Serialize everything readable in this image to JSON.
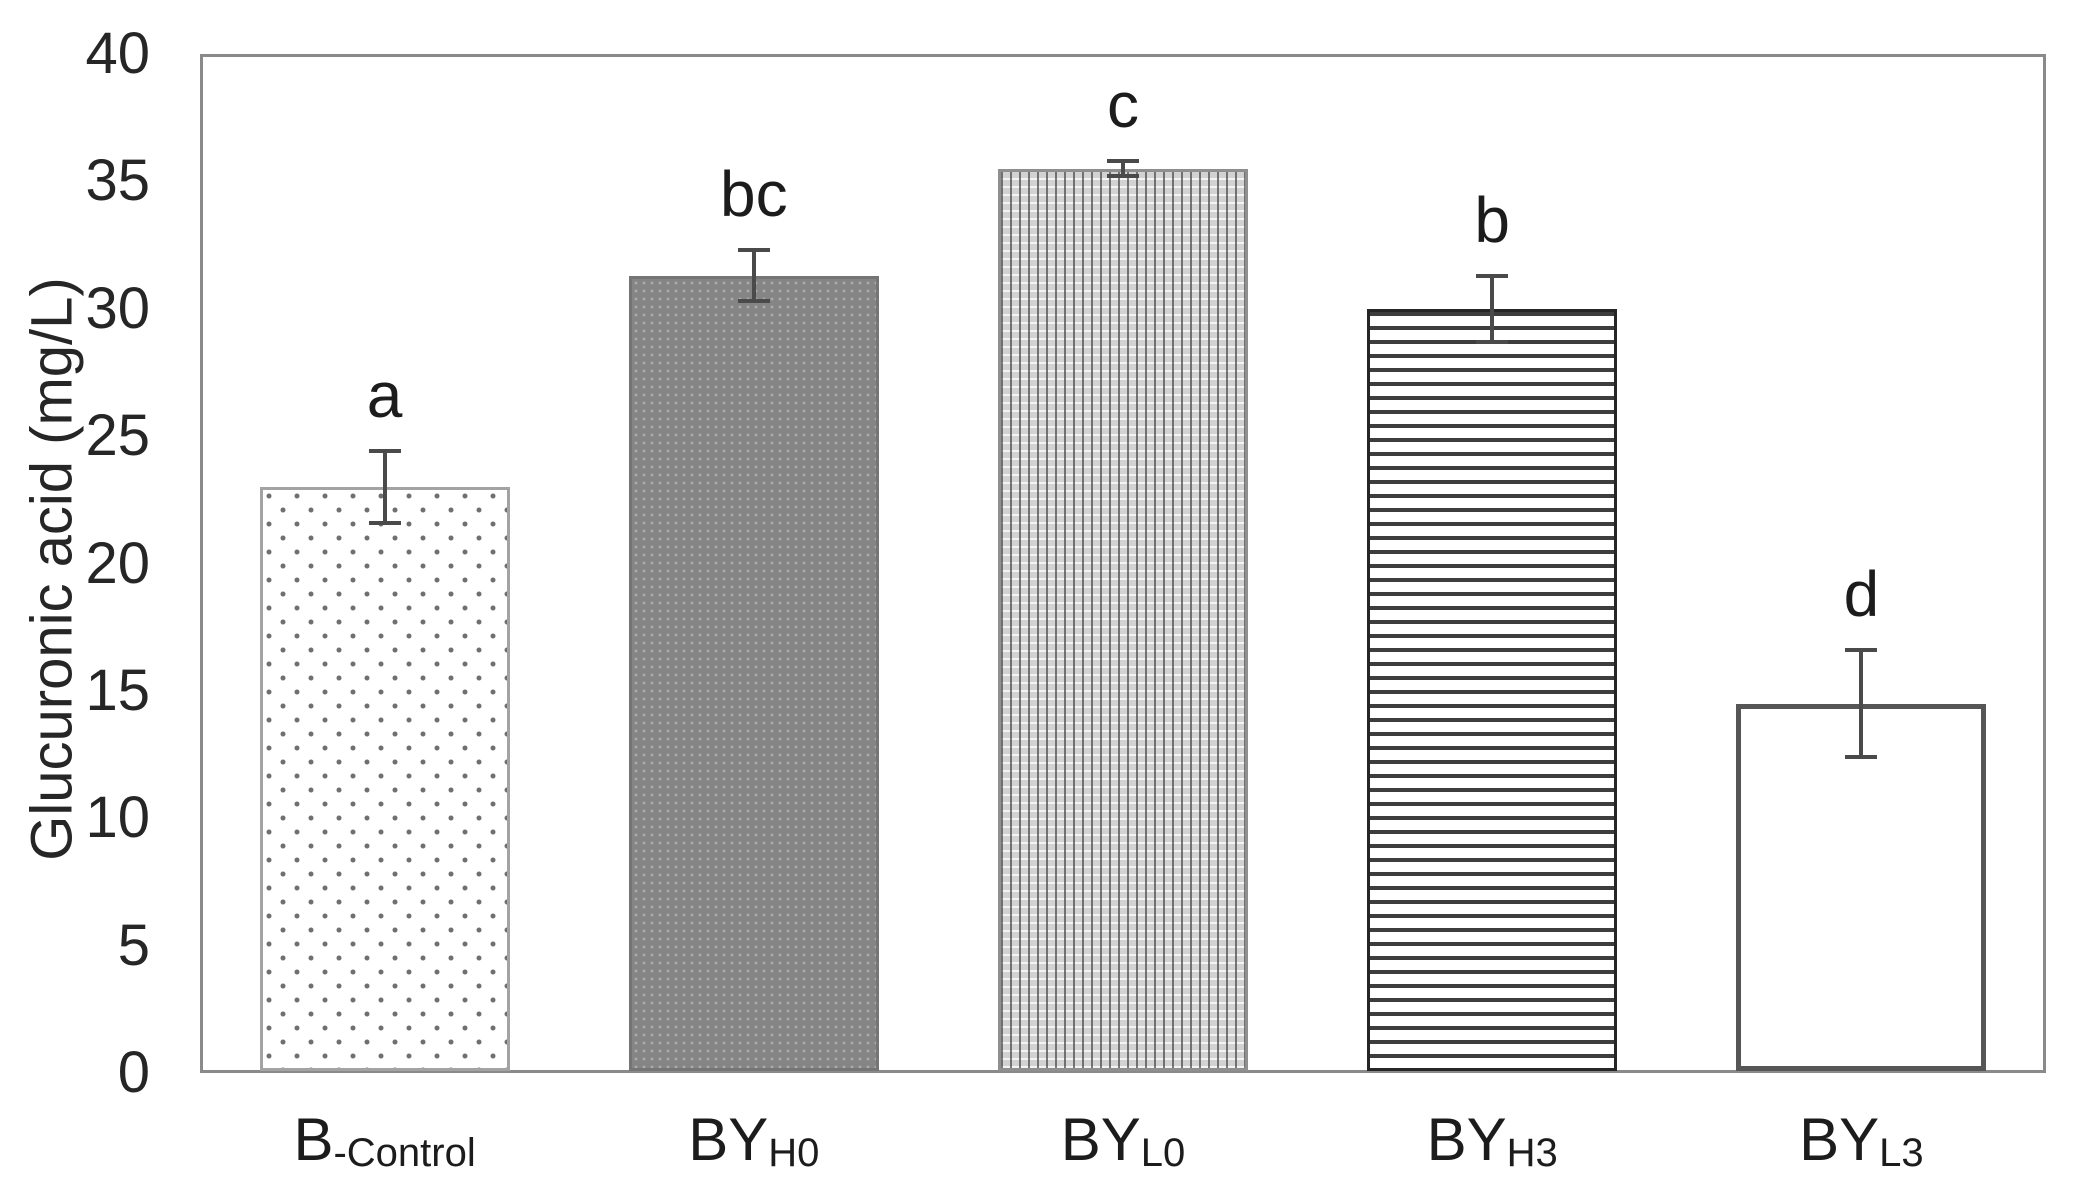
{
  "chart_data": {
    "type": "bar",
    "title": "",
    "xlabel": "",
    "ylabel": "Glucuronic acid (mg/L)",
    "ylim": [
      0,
      40
    ],
    "yticks": [
      0,
      5,
      10,
      15,
      20,
      25,
      30,
      35,
      40
    ],
    "grid": false,
    "legend": "none",
    "categories": [
      {
        "main": "B",
        "sub": "-Control"
      },
      {
        "main": "BY",
        "sub": "H0"
      },
      {
        "main": "BY",
        "sub": "L0"
      },
      {
        "main": "BY",
        "sub": "H3"
      },
      {
        "main": "BY",
        "sub": "L3"
      }
    ],
    "values": [
      23.0,
      31.3,
      35.5,
      30.0,
      14.5
    ],
    "error_bars": [
      1.4,
      1.0,
      0.3,
      1.3,
      2.1
    ],
    "significance_letters": [
      "a",
      "bc",
      "c",
      "b",
      "d"
    ],
    "bar_patterns": [
      "dots",
      "solid",
      "vdots",
      "hlines",
      "plain"
    ],
    "colors": {
      "axis_border": "#8a8a8a",
      "text": "#262626",
      "error_bar": "#4a4a4a",
      "solid_bar_fill": "#858585"
    }
  }
}
